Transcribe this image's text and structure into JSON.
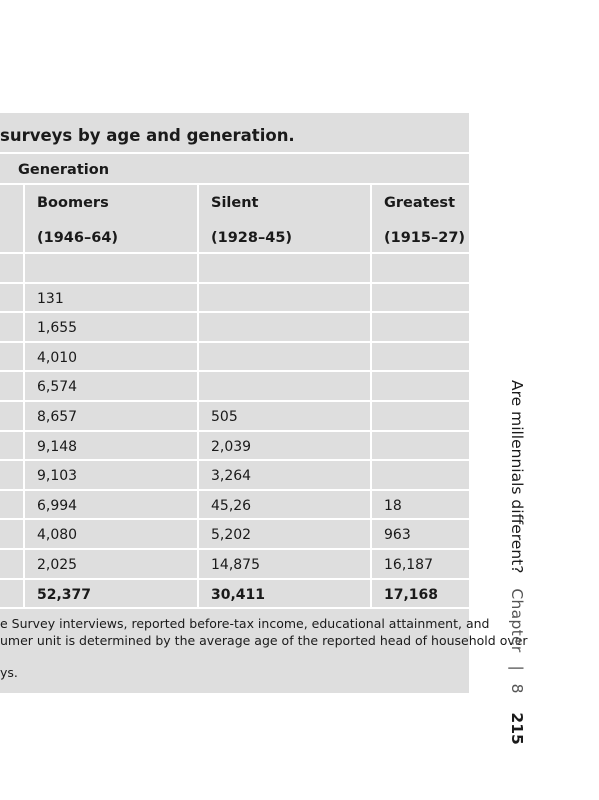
{
  "caption": "surveys by age and generation.",
  "generation_header": "Generation",
  "columns": [
    {
      "name": "Boomers",
      "years": "(1946–64)"
    },
    {
      "name": "Silent",
      "years": "(1928–45)"
    },
    {
      "name": "Greatest",
      "years": "(1915–27)"
    }
  ],
  "rows": [
    [
      "",
      "",
      ""
    ],
    [
      "131",
      "",
      ""
    ],
    [
      "1,655",
      "",
      ""
    ],
    [
      "4,010",
      "",
      ""
    ],
    [
      "6,574",
      "",
      ""
    ],
    [
      "8,657",
      "505",
      ""
    ],
    [
      "9,148",
      "2,039",
      ""
    ],
    [
      "9,103",
      "3,264",
      ""
    ],
    [
      "6,994",
      "45,26",
      "18"
    ],
    [
      "4,080",
      "5,202",
      "963"
    ],
    [
      "2,025",
      "14,875",
      "16,187"
    ]
  ],
  "totals": [
    "52,377",
    "30,411",
    "17,168"
  ],
  "notes": [
    "e Survey interviews, reported before-tax income, educational attainment, and",
    "umer unit is determined by the average age of the reported head of household over",
    "ys."
  ],
  "running_head": {
    "title": "Are millennials different?",
    "chapter_label": "Chapter",
    "separator": "|",
    "chapter_number": "8",
    "page_number": "215"
  }
}
